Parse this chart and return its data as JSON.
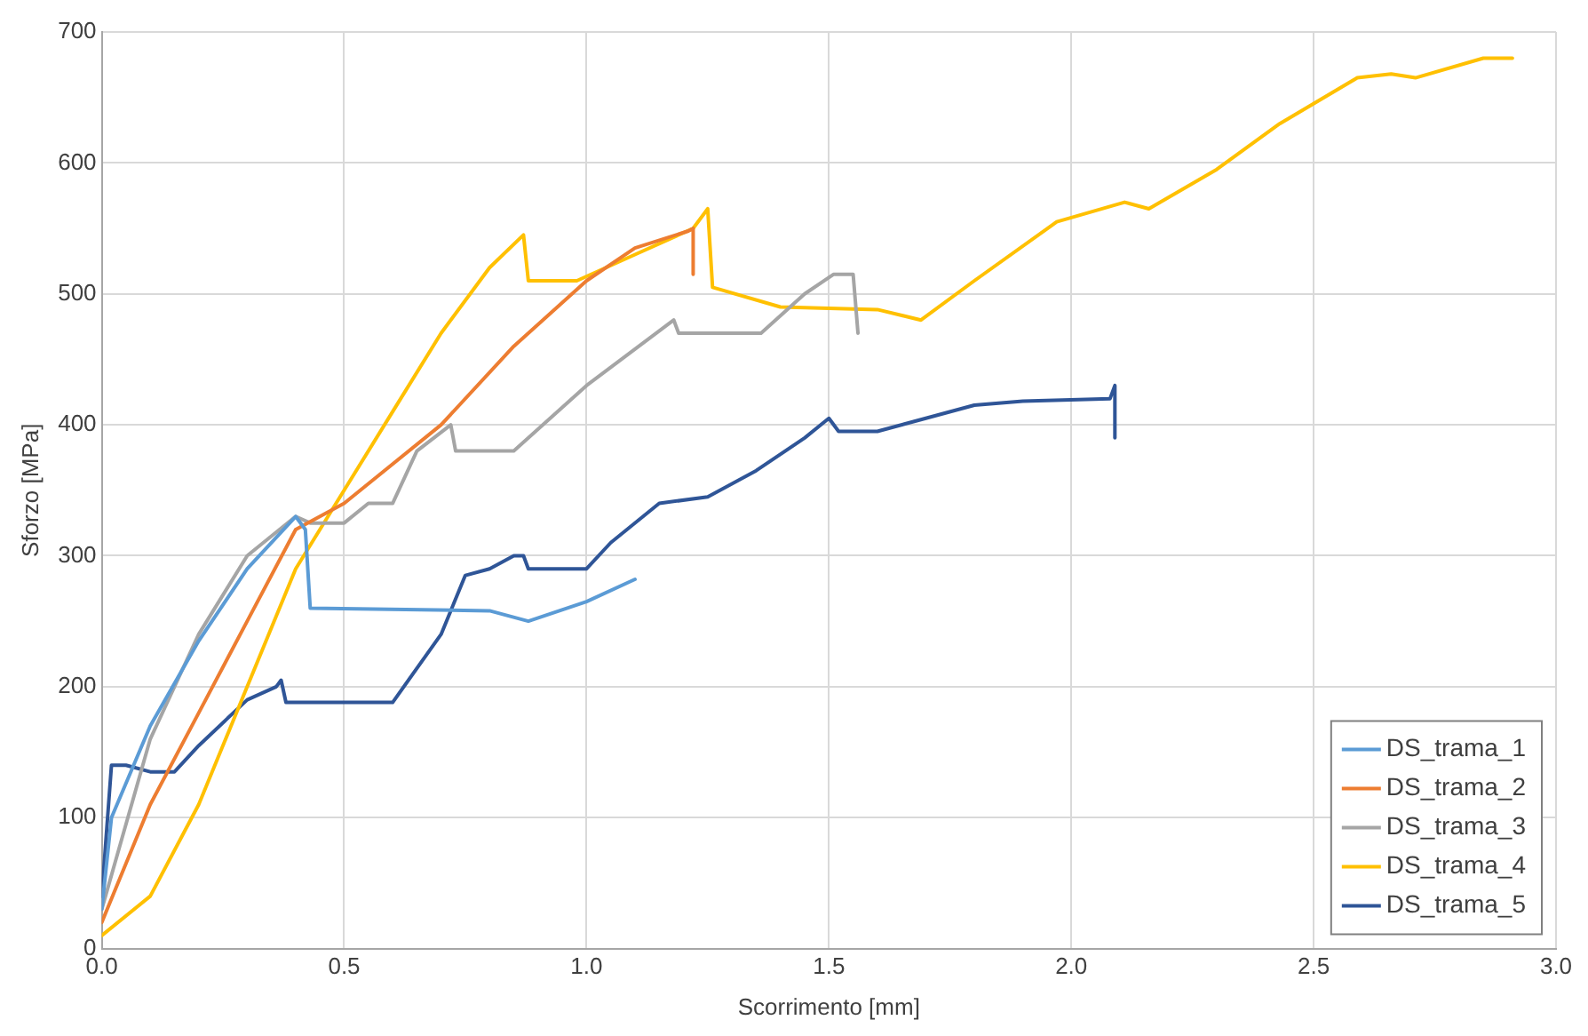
{
  "chart_data": {
    "type": "line",
    "xlabel": "Scorrimento [mm]",
    "ylabel": "Sforzo [MPa]",
    "xlim": [
      0,
      3
    ],
    "xticks": [
      {
        "value": 0,
        "label": "0.0"
      },
      {
        "value": 0.5,
        "label": "0.5"
      },
      {
        "value": 1,
        "label": "1.0"
      },
      {
        "value": 1.5,
        "label": "1.5"
      },
      {
        "value": 2,
        "label": "2.0"
      },
      {
        "value": 2.5,
        "label": "2.5"
      },
      {
        "value": 3,
        "label": "3.0"
      }
    ],
    "ylim": [
      0,
      700
    ],
    "yticks": [
      0,
      100,
      200,
      300,
      400,
      500,
      600,
      700
    ],
    "grid": true,
    "legend": "bottom right",
    "marker": "none",
    "line_style": "solid",
    "series": [
      {
        "name": "DS_trama_1",
        "color": "#5b9bd5",
        "x": [
          0,
          0.02,
          0.1,
          0.2,
          0.3,
          0.4,
          0.42,
          0.43,
          0.8,
          0.88,
          1.0,
          1.1
        ],
        "values": [
          30,
          100,
          170,
          235,
          290,
          330,
          320,
          260,
          258,
          250,
          265,
          282
        ]
      },
      {
        "name": "DS_trama_2",
        "color": "#ed7d31",
        "x": [
          0,
          0.1,
          0.2,
          0.3,
          0.4,
          0.5,
          0.7,
          0.85,
          1.0,
          1.1,
          1.21,
          1.22,
          1.22
        ],
        "values": [
          20,
          110,
          180,
          250,
          320,
          340,
          400,
          460,
          510,
          535,
          548,
          550,
          515
        ]
      },
      {
        "name": "DS_trama_3",
        "color": "#a5a5a5",
        "x": [
          0,
          0.1,
          0.2,
          0.3,
          0.4,
          0.43,
          0.5,
          0.55,
          0.6,
          0.65,
          0.72,
          0.73,
          0.85,
          1.0,
          1.18,
          1.19,
          1.36,
          1.45,
          1.51,
          1.55,
          1.56
        ],
        "values": [
          30,
          160,
          240,
          300,
          330,
          325,
          325,
          340,
          340,
          380,
          400,
          380,
          380,
          430,
          480,
          470,
          470,
          500,
          515,
          515,
          470
        ]
      },
      {
        "name": "DS_trama_4",
        "color": "#ffc000",
        "x": [
          0,
          0.1,
          0.2,
          0.3,
          0.4,
          0.5,
          0.6,
          0.7,
          0.8,
          0.87,
          0.88,
          0.98,
          1.1,
          1.22,
          1.25,
          1.26,
          1.4,
          1.6,
          1.69,
          1.8,
          1.97,
          2.11,
          2.16,
          2.3,
          2.43,
          2.59,
          2.66,
          2.71,
          2.85,
          2.91
        ],
        "values": [
          10,
          40,
          110,
          200,
          290,
          350,
          410,
          470,
          520,
          545,
          510,
          510,
          530,
          550,
          565,
          505,
          490,
          488,
          480,
          510,
          555,
          570,
          565,
          595,
          630,
          665,
          668,
          665,
          680,
          680
        ]
      },
      {
        "name": "DS_trama_5",
        "color": "#2f5597",
        "x": [
          0,
          0.02,
          0.05,
          0.1,
          0.15,
          0.2,
          0.3,
          0.36,
          0.37,
          0.38,
          0.6,
          0.7,
          0.75,
          0.8,
          0.85,
          0.87,
          0.88,
          1.0,
          1.05,
          1.15,
          1.25,
          1.35,
          1.45,
          1.5,
          1.52,
          1.6,
          1.7,
          1.8,
          1.9,
          2.08,
          2.09,
          2.09
        ],
        "values": [
          40,
          140,
          140,
          135,
          135,
          155,
          190,
          200,
          205,
          188,
          188,
          240,
          285,
          290,
          300,
          300,
          290,
          290,
          310,
          340,
          345,
          365,
          390,
          405,
          395,
          395,
          405,
          415,
          418,
          420,
          430,
          390
        ]
      }
    ]
  }
}
